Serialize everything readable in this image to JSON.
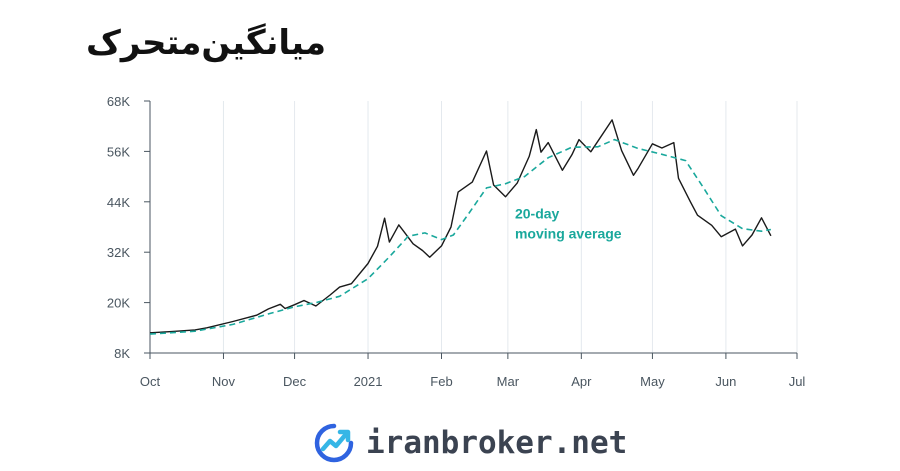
{
  "title": "میانگین‌متحرک",
  "brand": {
    "text": "iranbroker.net",
    "colors": {
      "icon_primary": "#2f63e0",
      "icon_accent": "#36b6e6",
      "text": "#3b4351"
    }
  },
  "chart_data": {
    "type": "line",
    "ylim": [
      8000,
      68000
    ],
    "y_ticks": [
      8000,
      20000,
      32000,
      44000,
      56000,
      68000
    ],
    "y_tick_labels": [
      "8K",
      "20K",
      "32K",
      "44K",
      "56K",
      "68K"
    ],
    "xlim": [
      "2020-10-01",
      "2021-07-01"
    ],
    "x_ticks": [
      "2020-10-01",
      "2020-11-01",
      "2020-12-01",
      "2021-01-01",
      "2021-02-01",
      "2021-03-01",
      "2021-04-01",
      "2021-05-01",
      "2021-06-01",
      "2021-07-01"
    ],
    "x_tick_labels": [
      "Oct",
      "Nov",
      "Dec",
      "2021",
      "Feb",
      "Mar",
      "Apr",
      "May",
      "Jun",
      "Jul"
    ],
    "grid": "vertical",
    "annotation": {
      "text_line1": "20-day",
      "text_line2": "moving average",
      "at": [
        "2021-03-04",
        40000
      ]
    },
    "colors": {
      "price": "#1a1a1a",
      "moving_average": "#1aa89c",
      "grid": "#e4e9ee",
      "axis": "#4a5660"
    },
    "series": [
      {
        "style": "solid",
        "points": [
          [
            "2020-10-01",
            12800
          ],
          [
            "2020-10-10",
            13100
          ],
          [
            "2020-10-20",
            13500
          ],
          [
            "2020-10-25",
            14000
          ],
          [
            "2020-11-05",
            15500
          ],
          [
            "2020-11-15",
            17000
          ],
          [
            "2020-11-20",
            18500
          ],
          [
            "2020-11-25",
            19600
          ],
          [
            "2020-11-27",
            18600
          ],
          [
            "2020-12-01",
            19500
          ],
          [
            "2020-12-05",
            20500
          ],
          [
            "2020-12-10",
            19200
          ],
          [
            "2020-12-16",
            21800
          ],
          [
            "2020-12-20",
            23700
          ],
          [
            "2020-12-25",
            24500
          ],
          [
            "2021-01-01",
            29300
          ],
          [
            "2021-01-05",
            33400
          ],
          [
            "2021-01-08",
            40100
          ],
          [
            "2021-01-10",
            34400
          ],
          [
            "2021-01-14",
            38500
          ],
          [
            "2021-01-16",
            37000
          ],
          [
            "2021-01-20",
            34000
          ],
          [
            "2021-01-24",
            32400
          ],
          [
            "2021-01-27",
            30800
          ],
          [
            "2021-02-01",
            33500
          ],
          [
            "2021-02-05",
            38000
          ],
          [
            "2021-02-08",
            46300
          ],
          [
            "2021-02-14",
            48700
          ],
          [
            "2021-02-20",
            56100
          ],
          [
            "2021-02-23",
            48000
          ],
          [
            "2021-02-28",
            45200
          ],
          [
            "2021-03-05",
            48500
          ],
          [
            "2021-03-10",
            54800
          ],
          [
            "2021-03-13",
            61200
          ],
          [
            "2021-03-15",
            55800
          ],
          [
            "2021-03-18",
            58100
          ],
          [
            "2021-03-24",
            51500
          ],
          [
            "2021-03-28",
            55200
          ],
          [
            "2021-03-31",
            58800
          ],
          [
            "2021-04-05",
            55900
          ],
          [
            "2021-04-14",
            63500
          ],
          [
            "2021-04-18",
            56200
          ],
          [
            "2021-04-23",
            50300
          ],
          [
            "2021-04-25",
            52000
          ],
          [
            "2021-05-01",
            57800
          ],
          [
            "2021-05-05",
            56800
          ],
          [
            "2021-05-10",
            58100
          ],
          [
            "2021-05-12",
            49600
          ],
          [
            "2021-05-17",
            44000
          ],
          [
            "2021-05-20",
            40800
          ],
          [
            "2021-05-26",
            38400
          ],
          [
            "2021-05-30",
            35700
          ],
          [
            "2021-06-05",
            37500
          ],
          [
            "2021-06-08",
            33500
          ],
          [
            "2021-06-12",
            36100
          ],
          [
            "2021-06-16",
            40200
          ],
          [
            "2021-06-20",
            35900
          ]
        ]
      },
      {
        "style": "dashed",
        "points": [
          [
            "2020-10-01",
            12500
          ],
          [
            "2020-10-20",
            13200
          ],
          [
            "2020-11-05",
            14800
          ],
          [
            "2020-11-20",
            17300
          ],
          [
            "2020-12-01",
            19000
          ],
          [
            "2020-12-10",
            20000
          ],
          [
            "2020-12-20",
            21500
          ],
          [
            "2021-01-01",
            25700
          ],
          [
            "2021-01-10",
            30900
          ],
          [
            "2021-01-18",
            35800
          ],
          [
            "2021-01-25",
            36600
          ],
          [
            "2021-02-01",
            35000
          ],
          [
            "2021-02-06",
            36100
          ],
          [
            "2021-02-12",
            40800
          ],
          [
            "2021-02-20",
            47300
          ],
          [
            "2021-02-28",
            48300
          ],
          [
            "2021-03-08",
            50000
          ],
          [
            "2021-03-18",
            54500
          ],
          [
            "2021-03-28",
            57000
          ],
          [
            "2021-04-08",
            57100
          ],
          [
            "2021-04-15",
            58800
          ],
          [
            "2021-04-25",
            56700
          ],
          [
            "2021-05-05",
            55300
          ],
          [
            "2021-05-15",
            53800
          ],
          [
            "2021-05-22",
            47800
          ],
          [
            "2021-05-30",
            40700
          ],
          [
            "2021-06-08",
            37600
          ],
          [
            "2021-06-16",
            37000
          ],
          [
            "2021-06-20",
            37400
          ]
        ]
      }
    ]
  }
}
